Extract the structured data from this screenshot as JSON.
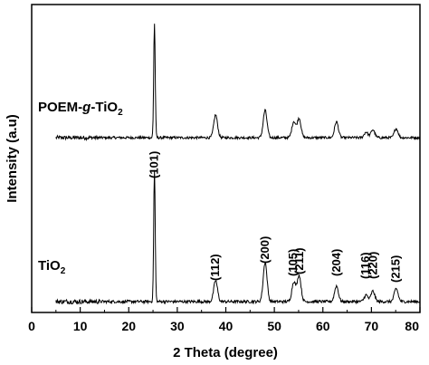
{
  "chart_data": {
    "type": "line",
    "xlabel": "2 Theta (degree)",
    "ylabel": "Intensity (a.u)",
    "xlim": [
      0,
      80
    ],
    "xticks": [
      0,
      10,
      20,
      30,
      40,
      50,
      60,
      70,
      80
    ],
    "y_tick_labels": "none",
    "grid": false,
    "series": [
      {
        "name": "POEM-g-TiO2",
        "label_main": "POEM-",
        "label_italic": "g",
        "label_tail": "-TiO",
        "label_sub": "2",
        "x_start": 5,
        "x_end": 80,
        "baseline": 0,
        "peaks": [
          {
            "x": 25.3,
            "height": 1.0
          },
          {
            "x": 37.9,
            "height": 0.2
          },
          {
            "x": 48.1,
            "height": 0.24
          },
          {
            "x": 54.0,
            "height": 0.14
          },
          {
            "x": 55.1,
            "height": 0.17
          },
          {
            "x": 62.8,
            "height": 0.14
          },
          {
            "x": 68.9,
            "height": 0.05
          },
          {
            "x": 70.3,
            "height": 0.07
          },
          {
            "x": 75.1,
            "height": 0.08
          }
        ]
      },
      {
        "name": "TiO2",
        "label_main": "TiO",
        "label_sub": "2",
        "x_start": 5,
        "x_end": 80,
        "baseline": 0,
        "peaks": [
          {
            "x": 25.3,
            "height": 1.0
          },
          {
            "x": 37.9,
            "height": 0.16
          },
          {
            "x": 48.1,
            "height": 0.3
          },
          {
            "x": 54.0,
            "height": 0.15
          },
          {
            "x": 55.1,
            "height": 0.2
          },
          {
            "x": 62.8,
            "height": 0.12
          },
          {
            "x": 68.9,
            "height": 0.05
          },
          {
            "x": 70.3,
            "height": 0.08
          },
          {
            "x": 75.1,
            "height": 0.1
          }
        ]
      }
    ],
    "annotations": [
      {
        "text": "(101)",
        "x": 25.3
      },
      {
        "text": "(112)",
        "x": 37.9
      },
      {
        "text": "(200)",
        "x": 48.1
      },
      {
        "text": "(105)",
        "x": 53.9
      },
      {
        "text": "(211)",
        "x": 55.2
      },
      {
        "text": "(204)",
        "x": 62.8
      },
      {
        "text": "(116)",
        "x": 68.8
      },
      {
        "text": "(220)",
        "x": 70.4
      },
      {
        "text": "(215)",
        "x": 75.1
      }
    ]
  }
}
